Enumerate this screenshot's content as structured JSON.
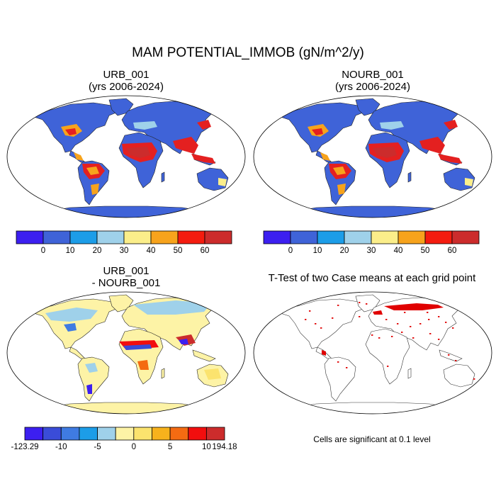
{
  "title": "MAM POTENTIAL_IMMOB (gN/m^2/y)",
  "panels": [
    {
      "id": "urb",
      "title_line1": "URB_001",
      "title_line2": "(yrs 2006-2024)"
    },
    {
      "id": "nourb",
      "title_line1": "NOURB_001",
      "title_line2": "(yrs 2006-2024)"
    },
    {
      "id": "diff",
      "title_line1": "URB_001",
      "title_line2": "- NOURB_001"
    },
    {
      "id": "ttest",
      "title_line1": "T-Test of two Case means at each grid point",
      "title_line2": ""
    }
  ],
  "colorbar_main": {
    "colors": [
      "#3c1ff0",
      "#3f63d8",
      "#1c9de8",
      "#9fd1ea",
      "#fbee8a",
      "#f7a31c",
      "#f41c0f",
      "#cc2c2c"
    ],
    "labels": [
      "0",
      "10",
      "20",
      "30",
      "40",
      "50",
      "60"
    ]
  },
  "colorbar_diff": {
    "colors": [
      "#3c1ff0",
      "#3a4cd8",
      "#3f7be2",
      "#1c9de8",
      "#9fd1ea",
      "#fdf3a6",
      "#fbe36e",
      "#f7b21c",
      "#f46b12",
      "#f20e0e",
      "#cc2c2c"
    ],
    "labels": [
      "-123.29",
      "-10",
      "-5",
      "0",
      "5",
      "10",
      "194.18"
    ]
  },
  "significance_note": "Cells are significant at 0.1 level",
  "legend_colors": {
    "land_base": "#3f63d8",
    "hot": "#e42020",
    "diff_base": "#fdf3a6",
    "diff_light": "#9fd1ea",
    "sig": "#e00000"
  }
}
